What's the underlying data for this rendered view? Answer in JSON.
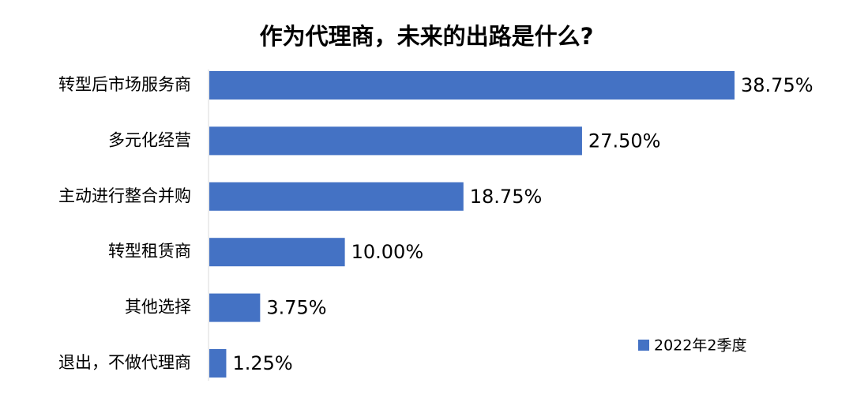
{
  "chart_data": {
    "type": "bar",
    "orientation": "horizontal",
    "title": "作为代理商，未来的出路是什么?",
    "categories": [
      "转型后市场服务商",
      "多元化经营",
      "主动进行整合并购",
      "转型租赁商",
      "其他选择",
      "退出，不做代理商"
    ],
    "series": [
      {
        "name": "2022年2季度",
        "color": "#4472c4",
        "values": [
          38.75,
          27.5,
          18.75,
          10,
          3.75,
          1.25
        ],
        "value_labels": [
          "38.75%",
          "27.50%",
          "18.75%",
          "10.00%",
          "3.75%",
          "1.25%"
        ]
      }
    ],
    "legend": "bottom-right"
  }
}
